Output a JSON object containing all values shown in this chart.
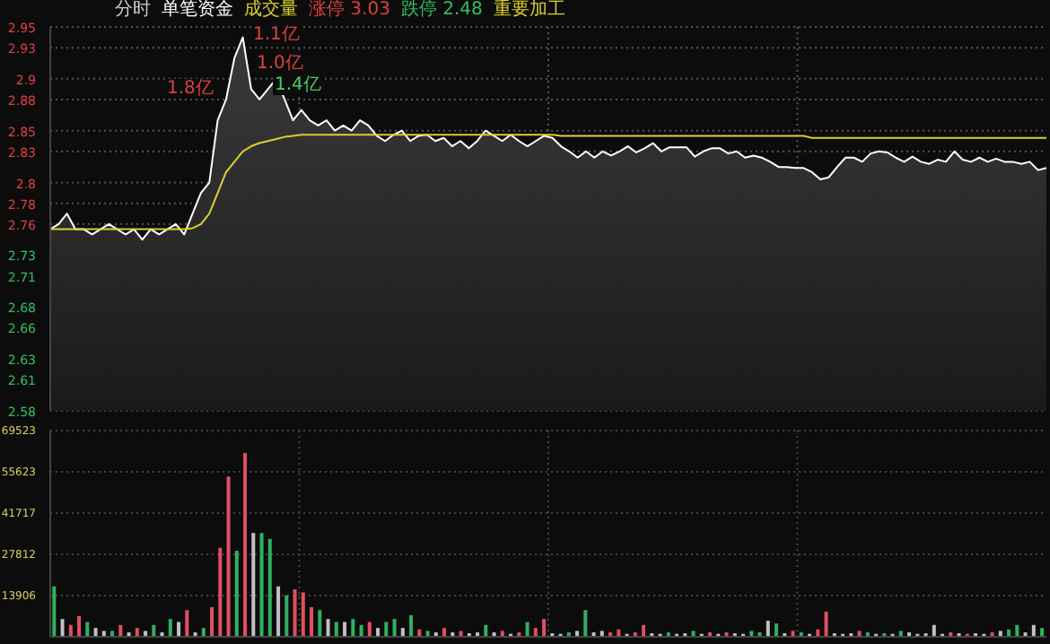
{
  "chart_data": [
    {
      "type": "line",
      "title": "分时",
      "subtitle": "单笔资金",
      "annotations": [
        "成交量",
        "涨停 3.03",
        "跌停 2.48",
        "重要加工",
        "1.1亿",
        "1.0亿",
        "1.8亿",
        "1.4亿"
      ],
      "categories": [
        null,
        null,
        null,
        null,
        null,
        null,
        null,
        null,
        null,
        null,
        null,
        null,
        null,
        null,
        null,
        null,
        null,
        null,
        null,
        null,
        null,
        null,
        null,
        null,
        null,
        null,
        null,
        null,
        null,
        null,
        null,
        null,
        null,
        null,
        null,
        null,
        null,
        null,
        null,
        null,
        null,
        null,
        null,
        null,
        null,
        null,
        null,
        null,
        null,
        null,
        null,
        null,
        null,
        null,
        null,
        null,
        null,
        null,
        null,
        null,
        null,
        null,
        null,
        null,
        null,
        null,
        null,
        null,
        null,
        null,
        null,
        null,
        null,
        null,
        null,
        null,
        null,
        null,
        null,
        null,
        null,
        null,
        null,
        null,
        null,
        null,
        null,
        null,
        null,
        null,
        null,
        null,
        null,
        null,
        null,
        null,
        null,
        null,
        null,
        null,
        null,
        null,
        null,
        null,
        null,
        null,
        null,
        null,
        null,
        null,
        null,
        null,
        null,
        null,
        null,
        null,
        null,
        null,
        null,
        null
      ],
      "series": [
        {
          "type": "area",
          "color": "#ffffff",
          "values": [
            2.755,
            2.76,
            2.77,
            2.755,
            2.755,
            2.75,
            2.755,
            2.76,
            2.755,
            2.75,
            2.755,
            2.745,
            2.755,
            2.75,
            2.755,
            2.76,
            2.75,
            2.77,
            2.79,
            2.8,
            2.86,
            2.88,
            2.92,
            2.94,
            2.89,
            2.88,
            2.89,
            2.9,
            2.88,
            2.86,
            2.87,
            2.86,
            2.855,
            2.86,
            2.85,
            2.855,
            2.85,
            2.86,
            2.855,
            2.845,
            2.84,
            2.846,
            2.85,
            2.84,
            2.845,
            2.846,
            2.84,
            2.843,
            2.835,
            2.84,
            2.833,
            2.84,
            2.85,
            2.845,
            2.84,
            2.846,
            2.84,
            2.835,
            2.84,
            2.845,
            2.843,
            2.835,
            2.83,
            2.824,
            2.83,
            2.824,
            2.83,
            2.826,
            2.83,
            2.835,
            2.829,
            2.833,
            2.838,
            2.83,
            2.834,
            2.834,
            2.834,
            2.825,
            2.83,
            2.833,
            2.833,
            2.828,
            2.83,
            2.824,
            2.826,
            2.824,
            2.82,
            2.815,
            2.815,
            2.814,
            2.814,
            2.81,
            2.803,
            2.805,
            2.815,
            2.824,
            2.824,
            2.82,
            2.828,
            2.83,
            2.829,
            2.824,
            2.82,
            2.825,
            2.82,
            2.818,
            2.822,
            2.82,
            2.83,
            2.822,
            2.82,
            2.824,
            2.82,
            2.823,
            2.82,
            2.82,
            2.818,
            2.82,
            2.812,
            2.814
          ]
        },
        {
          "type": "line",
          "color": "#d8d030",
          "values": [
            2.755,
            2.755,
            2.755,
            2.755,
            2.755,
            2.755,
            2.755,
            2.755,
            2.755,
            2.755,
            2.755,
            2.755,
            2.755,
            2.755,
            2.755,
            2.755,
            2.755,
            2.756,
            2.76,
            2.77,
            2.79,
            2.81,
            2.82,
            2.83,
            2.835,
            2.838,
            2.84,
            2.842,
            2.844,
            2.845,
            2.846,
            2.846,
            2.846,
            2.846,
            2.846,
            2.846,
            2.846,
            2.846,
            2.846,
            2.846,
            2.846,
            2.846,
            2.846,
            2.846,
            2.846,
            2.846,
            2.846,
            2.846,
            2.846,
            2.846,
            2.846,
            2.846,
            2.846,
            2.846,
            2.846,
            2.846,
            2.846,
            2.846,
            2.846,
            2.846,
            2.846,
            2.845,
            2.845,
            2.845,
            2.845,
            2.845,
            2.845,
            2.845,
            2.845,
            2.845,
            2.845,
            2.845,
            2.845,
            2.845,
            2.845,
            2.845,
            2.845,
            2.845,
            2.845,
            2.845,
            2.845,
            2.845,
            2.845,
            2.845,
            2.845,
            2.845,
            2.845,
            2.845,
            2.845,
            2.845,
            2.845,
            2.843,
            2.843,
            2.843,
            2.843,
            2.843,
            2.843,
            2.843,
            2.843,
            2.843,
            2.843,
            2.843,
            2.843,
            2.843,
            2.843,
            2.843,
            2.843,
            2.843,
            2.843,
            2.843,
            2.843,
            2.843,
            2.843,
            2.843,
            2.843,
            2.843,
            2.843,
            2.843,
            2.843,
            2.843
          ]
        }
      ],
      "ylim": [
        2.58,
        2.95
      ],
      "yticks": [
        2.58,
        2.61,
        2.63,
        2.66,
        2.68,
        2.71,
        2.73,
        2.76,
        2.78,
        2.8,
        2.83,
        2.85,
        2.88,
        2.9,
        2.93,
        2.95
      ],
      "grid": true,
      "tick_labels": "y"
    },
    {
      "type": "bar",
      "categories": [
        null,
        null,
        null,
        null,
        null,
        null,
        null,
        null,
        null,
        null,
        null,
        null,
        null,
        null,
        null,
        null,
        null,
        null,
        null,
        null,
        null,
        null,
        null,
        null,
        null,
        null,
        null,
        null,
        null,
        null,
        null,
        null,
        null,
        null,
        null,
        null,
        null,
        null,
        null,
        null,
        null,
        null,
        null,
        null,
        null,
        null,
        null,
        null,
        null,
        null,
        null,
        null,
        null,
        null,
        null,
        null,
        null,
        null,
        null,
        null,
        null,
        null,
        null,
        null,
        null,
        null,
        null,
        null,
        null,
        null,
        null,
        null,
        null,
        null,
        null,
        null,
        null,
        null,
        null,
        null,
        null,
        null,
        null,
        null,
        null,
        null,
        null,
        null,
        null,
        null,
        null,
        null,
        null,
        null,
        null,
        null,
        null,
        null,
        null,
        null,
        null,
        null,
        null,
        null,
        null,
        null,
        null,
        null,
        null,
        null,
        null,
        null,
        null,
        null,
        null,
        null,
        null,
        null,
        null,
        null
      ],
      "values": [
        17000,
        6000,
        4000,
        7000,
        5000,
        3000,
        2000,
        2000,
        4000,
        1500,
        3000,
        2000,
        4000,
        1500,
        6000,
        5000,
        9000,
        1500,
        3000,
        10000,
        30000,
        54000,
        29000,
        62000,
        35000,
        35000,
        33000,
        17000,
        14000,
        16000,
        15000,
        10000,
        9000,
        6000,
        5000,
        5000,
        6000,
        4000,
        5000,
        3000,
        5000,
        6000,
        3000,
        7300,
        2500,
        2000,
        1500,
        3000,
        1500,
        2000,
        1200,
        1500,
        4000,
        1500,
        2000,
        1000,
        1500,
        5000,
        3000,
        6000,
        1200,
        1000,
        1500,
        2000,
        9000,
        1500,
        2000,
        1500,
        2500,
        1000,
        1500,
        4000,
        1200,
        1000,
        1500,
        1000,
        1200,
        2000,
        1000,
        1500,
        1000,
        1500,
        1200,
        1000,
        2000,
        1500,
        5400,
        4500,
        1200,
        2000,
        1500,
        1000,
        2500,
        8500,
        1200,
        1000,
        1200,
        2000,
        1500,
        1000,
        1200,
        1000,
        2000,
        1500,
        1000,
        1200,
        4000,
        1000,
        1500,
        1200,
        1000,
        1200,
        1000,
        1500,
        2000,
        2500,
        4000,
        1500,
        4000,
        3000
      ],
      "colors": [
        "#30b060",
        "#c0c0c0",
        "#e05060",
        "#e05060",
        "#30b060",
        "#c0c0c0",
        "#c0c0c0",
        "#30b060",
        "#e05060",
        "#c0c0c0",
        "#e05060",
        "#c0c0c0",
        "#30b060",
        "#c0c0c0",
        "#30b060",
        "#c0c0c0",
        "#e05060",
        "#c0c0c0",
        "#30b060",
        "#e05060",
        "#e05060",
        "#e05060",
        "#30b060",
        "#e05060",
        "#c0c0c0",
        "#30b060",
        "#30b060",
        "#c0c0c0",
        "#30b060",
        "#e05060",
        "#e05060",
        "#e05060",
        "#30b060",
        "#c0c0c0",
        "#30b060",
        "#c0c0c0",
        "#30b060",
        "#30b060",
        "#e05060",
        "#c0c0c0",
        "#30b060",
        "#30b060",
        "#c0c0c0",
        "#30b060",
        "#e05060",
        "#30b060",
        "#c0c0c0",
        "#e05060",
        "#c0c0c0",
        "#e05060",
        "#c0c0c0",
        "#c0c0c0",
        "#30b060",
        "#c0c0c0",
        "#e05060",
        "#c0c0c0",
        "#e05060",
        "#30b060",
        "#e05060",
        "#e05060",
        "#c0c0c0",
        "#c0c0c0",
        "#30b060",
        "#c0c0c0",
        "#30b060",
        "#c0c0c0",
        "#c0c0c0",
        "#e05060",
        "#e05060",
        "#c0c0c0",
        "#e05060",
        "#e05060",
        "#c0c0c0",
        "#c0c0c0",
        "#30b060",
        "#c0c0c0",
        "#c0c0c0",
        "#30b060",
        "#c0c0c0",
        "#e05060",
        "#c0c0c0",
        "#e05060",
        "#c0c0c0",
        "#c0c0c0",
        "#30b060",
        "#30b060",
        "#c0c0c0",
        "#30b060",
        "#c0c0c0",
        "#e05060",
        "#30b060",
        "#c0c0c0",
        "#e05060",
        "#e05060",
        "#c0c0c0",
        "#c0c0c0",
        "#c0c0c0",
        "#e05060",
        "#30b060",
        "#c0c0c0",
        "#30b060",
        "#c0c0c0",
        "#30b060",
        "#c0c0c0",
        "#c0c0c0",
        "#c0c0c0",
        "#c0c0c0",
        "#c0c0c0",
        "#e05060",
        "#c0c0c0",
        "#e05060",
        "#c0c0c0",
        "#c0c0c0",
        "#e05060",
        "#c0c0c0",
        "#30b060",
        "#30b060",
        "#c0c0c0",
        "#c0c0c0",
        "#30b060"
      ],
      "ylim": [
        0,
        69523
      ],
      "yticks": [
        13906,
        27812,
        41717,
        55623,
        69523
      ],
      "grid": true,
      "tick_labels": "y"
    }
  ]
}
